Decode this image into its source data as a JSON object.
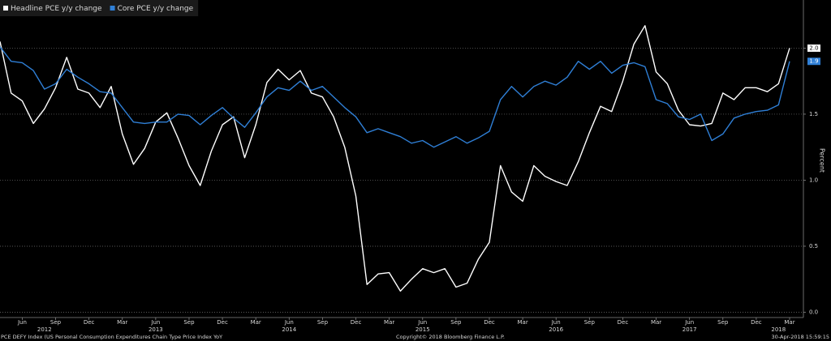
{
  "chart_data": {
    "type": "line",
    "legend": "top-left",
    "grid": true,
    "y_axis_label": "Percent",
    "y_axis_side": "right",
    "footer_left": "PCE DEFY Index (US Personal Consumption Expenditures Chain Type Price Index YoY",
    "footer_center": "Copyright© 2018 Bloomberg Finance L.P.",
    "footer_right": "30-Apr-2018 15:59:15",
    "x": [
      "2012-04",
      "2012-05",
      "2012-06",
      "2012-07",
      "2012-08",
      "2012-09",
      "2012-10",
      "2012-11",
      "2012-12",
      "2013-01",
      "2013-02",
      "2013-03",
      "2013-04",
      "2013-05",
      "2013-06",
      "2013-07",
      "2013-08",
      "2013-09",
      "2013-10",
      "2013-11",
      "2013-12",
      "2014-01",
      "2014-02",
      "2014-03",
      "2014-04",
      "2014-05",
      "2014-06",
      "2014-07",
      "2014-08",
      "2014-09",
      "2014-10",
      "2014-11",
      "2014-12",
      "2015-01",
      "2015-02",
      "2015-03",
      "2015-04",
      "2015-05",
      "2015-06",
      "2015-07",
      "2015-08",
      "2015-09",
      "2015-10",
      "2015-11",
      "2015-12",
      "2016-01",
      "2016-02",
      "2016-03",
      "2016-04",
      "2016-05",
      "2016-06",
      "2016-07",
      "2016-08",
      "2016-09",
      "2016-10",
      "2016-11",
      "2016-12",
      "2017-01",
      "2017-02",
      "2017-03",
      "2017-04",
      "2017-05",
      "2017-06",
      "2017-07",
      "2017-08",
      "2017-09",
      "2017-10",
      "2017-11",
      "2017-12",
      "2018-01",
      "2018-02",
      "2018-03"
    ],
    "series": [
      {
        "name": "Headline PCE y/y change",
        "color": "#ffffff",
        "values": [
          2.05,
          1.66,
          1.6,
          1.43,
          1.54,
          1.7,
          1.93,
          1.69,
          1.66,
          1.55,
          1.71,
          1.35,
          1.12,
          1.24,
          1.44,
          1.51,
          1.32,
          1.11,
          0.96,
          1.22,
          1.42,
          1.48,
          1.17,
          1.42,
          1.74,
          1.84,
          1.76,
          1.83,
          1.66,
          1.63,
          1.48,
          1.25,
          0.88,
          0.21,
          0.29,
          0.3,
          0.16,
          0.25,
          0.33,
          0.3,
          0.33,
          0.19,
          0.22,
          0.4,
          0.53,
          1.11,
          0.91,
          0.84,
          1.11,
          1.03,
          0.99,
          0.96,
          1.14,
          1.36,
          1.56,
          1.52,
          1.75,
          2.03,
          2.17,
          1.82,
          1.73,
          1.53,
          1.42,
          1.41,
          1.43,
          1.66,
          1.61,
          1.7,
          1.7,
          1.67,
          1.73,
          2.0
        ],
        "value_labels": [
          null,
          null,
          null,
          null,
          null,
          null,
          null,
          null,
          null,
          null,
          null,
          null,
          null,
          null,
          null,
          null,
          null,
          null,
          null,
          null,
          null,
          null,
          null,
          null,
          null,
          null,
          null,
          null,
          null,
          null,
          null,
          null,
          null,
          null,
          null,
          null,
          null,
          null,
          null,
          null,
          null,
          null,
          null,
          null,
          null,
          null,
          null,
          null,
          null,
          null,
          null,
          null,
          null,
          null,
          null,
          null,
          null,
          null,
          null,
          null,
          null,
          null,
          null,
          null,
          null,
          null,
          null,
          null,
          null,
          null,
          null,
          "2.0"
        ]
      },
      {
        "name": "Core PCE y/y change",
        "color": "#2f7fd6",
        "values": [
          2.01,
          1.9,
          1.89,
          1.83,
          1.69,
          1.73,
          1.84,
          1.78,
          1.73,
          1.67,
          1.66,
          1.55,
          1.44,
          1.43,
          1.44,
          1.44,
          1.5,
          1.49,
          1.42,
          1.49,
          1.55,
          1.47,
          1.4,
          1.51,
          1.63,
          1.7,
          1.68,
          1.75,
          1.68,
          1.71,
          1.63,
          1.55,
          1.48,
          1.36,
          1.39,
          1.36,
          1.33,
          1.28,
          1.3,
          1.25,
          1.29,
          1.33,
          1.28,
          1.32,
          1.37,
          1.61,
          1.71,
          1.63,
          1.71,
          1.75,
          1.72,
          1.78,
          1.9,
          1.84,
          1.9,
          1.81,
          1.87,
          1.89,
          1.86,
          1.61,
          1.58,
          1.48,
          1.46,
          1.5,
          1.3,
          1.35,
          1.47,
          1.5,
          1.52,
          1.53,
          1.57,
          1.9
        ],
        "value_labels": [
          null,
          null,
          null,
          null,
          null,
          null,
          null,
          null,
          null,
          null,
          null,
          null,
          null,
          null,
          null,
          null,
          null,
          null,
          null,
          null,
          null,
          null,
          null,
          null,
          null,
          null,
          null,
          null,
          null,
          null,
          null,
          null,
          null,
          null,
          null,
          null,
          null,
          null,
          null,
          null,
          null,
          null,
          null,
          null,
          null,
          null,
          null,
          null,
          null,
          null,
          null,
          null,
          null,
          null,
          null,
          null,
          null,
          null,
          null,
          null,
          null,
          null,
          null,
          null,
          null,
          null,
          null,
          null,
          null,
          null,
          null,
          "1.9"
        ]
      }
    ],
    "ylim": [
      -0.04,
      2.34
    ],
    "yticks": [
      {
        "value": 0,
        "label": "0.0"
      },
      {
        "value": 0.5,
        "label": "0.5"
      },
      {
        "value": 1,
        "label": "1.0"
      },
      {
        "value": 1.5,
        "label": "1.5"
      },
      {
        "value": 2,
        "label": "2.0"
      }
    ],
    "xticks": [
      {
        "value": "2012-06",
        "label": "Jun"
      },
      {
        "value": "2012-09",
        "label": "Sep"
      },
      {
        "value": "2012-12",
        "label": "Dec"
      },
      {
        "value": "2013-03",
        "label": "Mar"
      },
      {
        "value": "2013-06",
        "label": "Jun"
      },
      {
        "value": "2013-09",
        "label": "Sep"
      },
      {
        "value": "2013-12",
        "label": "Dec"
      },
      {
        "value": "2014-03",
        "label": "Mar"
      },
      {
        "value": "2014-06",
        "label": "Jun"
      },
      {
        "value": "2014-09",
        "label": "Sep"
      },
      {
        "value": "2014-12",
        "label": "Dec"
      },
      {
        "value": "2015-03",
        "label": "Mar"
      },
      {
        "value": "2015-06",
        "label": "Jun"
      },
      {
        "value": "2015-09",
        "label": "Sep"
      },
      {
        "value": "2015-12",
        "label": "Dec"
      },
      {
        "value": "2016-03",
        "label": "Mar"
      },
      {
        "value": "2016-06",
        "label": "Jun"
      },
      {
        "value": "2016-09",
        "label": "Sep"
      },
      {
        "value": "2016-12",
        "label": "Dec"
      },
      {
        "value": "2017-03",
        "label": "Mar"
      },
      {
        "value": "2017-06",
        "label": "Jun"
      },
      {
        "value": "2017-09",
        "label": "Sep"
      },
      {
        "value": "2017-12",
        "label": "Dec"
      },
      {
        "value": "2018-03",
        "label": "Mar"
      }
    ],
    "year_labels": [
      {
        "value": "2012-08",
        "label": "2012"
      },
      {
        "value": "2013-06",
        "label": "2013"
      },
      {
        "value": "2014-06",
        "label": "2014"
      },
      {
        "value": "2015-06",
        "label": "2015"
      },
      {
        "value": "2016-06",
        "label": "2016"
      },
      {
        "value": "2017-06",
        "label": "2017"
      },
      {
        "value": "2018-02",
        "label": "2018"
      }
    ]
  }
}
